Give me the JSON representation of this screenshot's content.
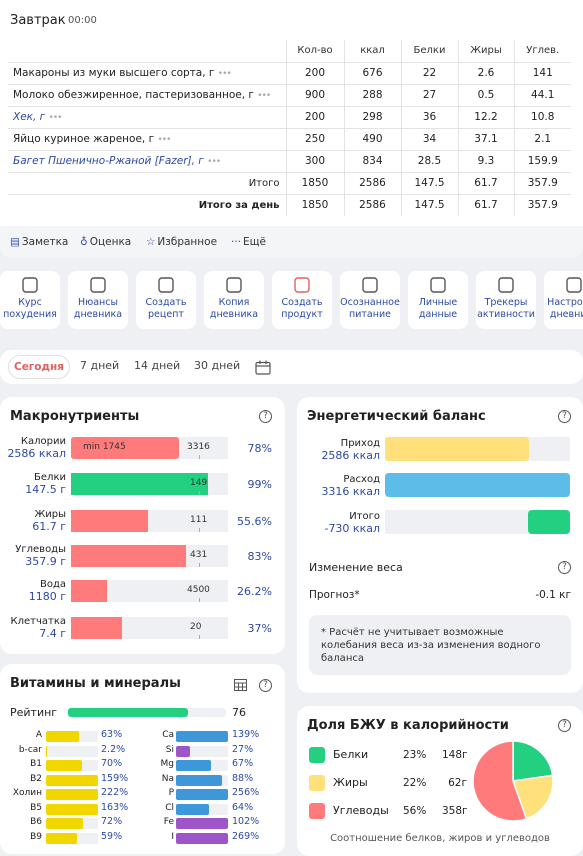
{
  "meal": {
    "title": "Завтрак",
    "time": "00:00",
    "columns": [
      "Кол-во",
      "ккал",
      "Белки",
      "Жиры",
      "Углев."
    ],
    "items": [
      {
        "name": "Макароны из муки высшего сорта, г",
        "qty": "200",
        "kcal": "676",
        "protein": "22",
        "fat": "2.6",
        "carbs": "141",
        "link": false
      },
      {
        "name": "Молоко обезжиренное, пастеризованное, г",
        "qty": "900",
        "kcal": "288",
        "protein": "27",
        "fat": "0.5",
        "carbs": "44.1",
        "link": false
      },
      {
        "name": "Хек, г",
        "qty": "200",
        "kcal": "298",
        "protein": "36",
        "fat": "12.2",
        "carbs": "10.8",
        "link": true
      },
      {
        "name": "Яйцо куриное жареное, г",
        "qty": "250",
        "kcal": "490",
        "protein": "34",
        "fat": "37.1",
        "carbs": "2.1",
        "link": false
      },
      {
        "name": "Багет Пшенично-Ржаной [Fazer], г",
        "qty": "300",
        "kcal": "834",
        "protein": "28.5",
        "fat": "9.3",
        "carbs": "159.9",
        "link": true
      }
    ],
    "total": {
      "label": "Итого",
      "qty": "1850",
      "kcal": "2586",
      "protein": "147.5",
      "fat": "61.7",
      "carbs": "357.9"
    },
    "day_total": {
      "label": "Итого за день",
      "qty": "1850",
      "kcal": "2586",
      "protein": "147.5",
      "fat": "61.7",
      "carbs": "357.9"
    },
    "more_icon": "ellipsis-icon",
    "actions": {
      "note": "Заметка",
      "rate": "Оценка",
      "favorite": "Избранное",
      "more": "Ещё"
    }
  },
  "tools": [
    {
      "label": "Курс похудения",
      "icon": "scale-icon"
    },
    {
      "label": "Нюансы дневника",
      "icon": "book-icon"
    },
    {
      "label": "Создать рецепт",
      "icon": "recipe-icon"
    },
    {
      "label": "Копия дневника",
      "icon": "copy-icon"
    },
    {
      "label": "Создать продукт",
      "icon": "apple-icon"
    },
    {
      "label": "Осознанное питание",
      "icon": "bulb-icon"
    },
    {
      "label": "Личные данные",
      "icon": "user-icon"
    },
    {
      "label": "Трекеры активности",
      "icon": "tracker-icon"
    },
    {
      "label": "Настройки дневника",
      "icon": "gear-icon"
    }
  ],
  "periods": {
    "today": "Сегодня",
    "d7": "7 дней",
    "d14": "14 дней",
    "d30": "30 дней"
  },
  "macros": {
    "title": "Макронутриенты",
    "rows": [
      {
        "name": "Калории",
        "value": "2586 ккал",
        "target": "3316",
        "min": "min 1745",
        "pct": "78%",
        "fraction": 0.78,
        "color": "#ff7b7b"
      },
      {
        "name": "Белки",
        "value": "147.5 г",
        "target": "149",
        "pct": "99%",
        "fraction": 0.99,
        "color": "#23d082"
      },
      {
        "name": "Жиры",
        "value": "61.7 г",
        "target": "111",
        "pct": "55.6%",
        "fraction": 0.556,
        "color": "#ff7b7b"
      },
      {
        "name": "Углеводы",
        "value": "357.9 г",
        "target": "431",
        "pct": "83%",
        "fraction": 0.83,
        "color": "#ff7b7b"
      },
      {
        "name": "Вода",
        "value": "1180 г",
        "target": "4500",
        "pct": "26.2%",
        "fraction": 0.262,
        "color": "#ff7b7b"
      },
      {
        "name": "Клетчатка",
        "value": "7.4 г",
        "target": "20",
        "pct": "37%",
        "fraction": 0.37,
        "color": "#ff7b7b"
      }
    ]
  },
  "energy": {
    "title": "Энергетический баланс",
    "rows": [
      {
        "name": "Приход",
        "value": "2586 ккал",
        "fraction": 0.78,
        "color": "#ffe07a"
      },
      {
        "name": "Расход",
        "value": "3316 ккал",
        "fraction": 1.0,
        "color": "#5dbde8"
      },
      {
        "name": "Итого",
        "value": "-730 ккал",
        "fraction": 0.22,
        "color": "#23d082"
      }
    ],
    "weight_title": "Изменение веса",
    "forecast_label": "Прогноз*",
    "forecast_value": "-0.1 кг",
    "note": "* Расчёт не учитывает возможные колебания веса из-за изменения водного баланса"
  },
  "vitamins": {
    "title": "Витамины и минералы",
    "rating_label": "Рейтинг",
    "rating_value": "76",
    "rating_fraction": 0.76,
    "left": [
      {
        "name": "A",
        "pct": "63%",
        "fraction": 0.63
      },
      {
        "name": "b-car",
        "pct": "2.2%",
        "fraction": 0.022
      },
      {
        "name": "B1",
        "pct": "70%",
        "fraction": 0.7
      },
      {
        "name": "B2",
        "pct": "159%",
        "fraction": 1.0
      },
      {
        "name": "Холин",
        "pct": "222%",
        "fraction": 1.0
      },
      {
        "name": "B5",
        "pct": "163%",
        "fraction": 1.0
      },
      {
        "name": "B6",
        "pct": "72%",
        "fraction": 0.72
      },
      {
        "name": "B9",
        "pct": "59%",
        "fraction": 0.59
      }
    ],
    "right": [
      {
        "name": "Ca",
        "pct": "139%",
        "fraction": 1.0,
        "color": "#3d97d8"
      },
      {
        "name": "Si",
        "pct": "27%",
        "fraction": 0.27,
        "color": "#9d55c7"
      },
      {
        "name": "Mg",
        "pct": "67%",
        "fraction": 0.67,
        "color": "#3d97d8"
      },
      {
        "name": "Na",
        "pct": "88%",
        "fraction": 0.88,
        "color": "#3d97d8"
      },
      {
        "name": "P",
        "pct": "256%",
        "fraction": 1.0,
        "color": "#3d97d8"
      },
      {
        "name": "Cl",
        "pct": "64%",
        "fraction": 0.64,
        "color": "#3d97d8"
      },
      {
        "name": "Fe",
        "pct": "102%",
        "fraction": 1.0,
        "color": "#9d55c7"
      },
      {
        "name": "I",
        "pct": "269%",
        "fraction": 1.0,
        "color": "#9d55c7"
      }
    ]
  },
  "bju": {
    "title": "Доля БЖУ в калорийности",
    "rows": [
      {
        "name": "Белки",
        "pct": "23%",
        "grams": "148г",
        "share": 23,
        "color": "#23d082"
      },
      {
        "name": "Жиры",
        "pct": "22%",
        "grams": "62г",
        "share": 22,
        "color": "#ffe07a"
      },
      {
        "name": "Углеводы",
        "pct": "56%",
        "grams": "358г",
        "share": 56,
        "color": "#ff7b7b"
      }
    ],
    "caption": "Соотношение белков, жиров и углеводов"
  }
}
